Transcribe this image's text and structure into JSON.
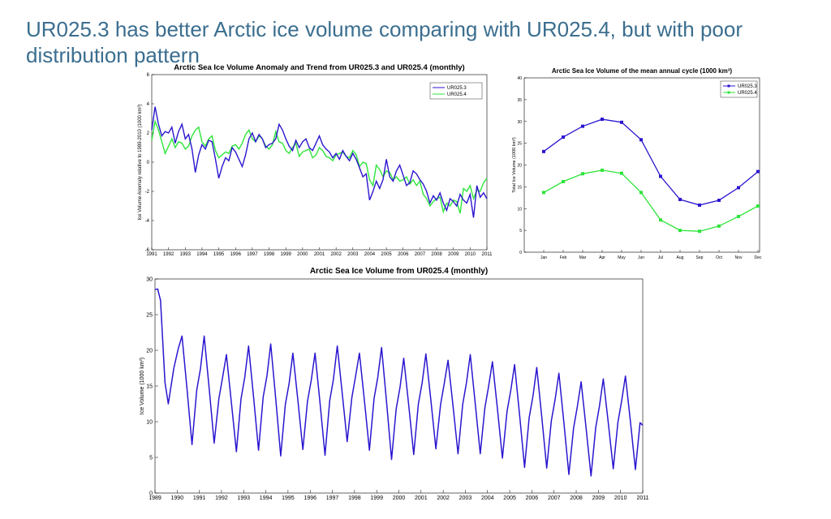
{
  "slide": {
    "title": "UR025.3 has better Arctic ice volume comparing with UR025.4, but with poor distribution pattern"
  },
  "colors": {
    "ur0253": "#2a16cf",
    "ur0254": "#2ee53a",
    "title": "#3b6e8f"
  },
  "chart_data": [
    {
      "type": "line",
      "title": "Arctic Sea Ice Volume Anomaly and Trend from UR025.3 and UR025.4 (monthly)",
      "ylabel": "Ice Volume Anomaly relative to 1989-2010 (1000 km³)",
      "xlim": [
        1991,
        2011
      ],
      "ylim": [
        -6,
        6
      ],
      "xticks": [
        "1991",
        "1992",
        "1993",
        "1994",
        "1995",
        "1996",
        "1997",
        "1998",
        "1999",
        "2000",
        "2001",
        "2002",
        "2003",
        "2004",
        "2005",
        "2006",
        "2007",
        "2008",
        "2009",
        "2010",
        "2011"
      ],
      "yticks": [
        "6",
        "4",
        "2",
        "0",
        "-2",
        "-4",
        "-6"
      ],
      "legend_position": "top-right",
      "series": [
        {
          "name": "UR025.3",
          "color": "#2a16cf",
          "x": [
            1991.0,
            1991.2,
            1991.4,
            1991.6,
            1991.8,
            1992.0,
            1992.2,
            1992.4,
            1992.6,
            1992.8,
            1993.0,
            1993.2,
            1993.4,
            1993.6,
            1993.8,
            1994.0,
            1994.2,
            1994.4,
            1994.6,
            1994.8,
            1995.0,
            1995.2,
            1995.4,
            1995.6,
            1995.8,
            1996.0,
            1996.2,
            1996.4,
            1996.6,
            1996.8,
            1997.0,
            1997.2,
            1997.4,
            1997.6,
            1997.8,
            1998.0,
            1998.2,
            1998.4,
            1998.6,
            1998.8,
            1999.0,
            1999.2,
            1999.4,
            1999.6,
            1999.8,
            2000.0,
            2000.2,
            2000.4,
            2000.6,
            2000.8,
            2001.0,
            2001.2,
            2001.4,
            2001.6,
            2001.8,
            2002.0,
            2002.2,
            2002.4,
            2002.6,
            2002.8,
            2003.0,
            2003.2,
            2003.4,
            2003.6,
            2003.8,
            2004.0,
            2004.2,
            2004.4,
            2004.6,
            2004.8,
            2005.0,
            2005.2,
            2005.4,
            2005.6,
            2005.8,
            2006.0,
            2006.2,
            2006.4,
            2006.6,
            2006.8,
            2007.0,
            2007.2,
            2007.4,
            2007.6,
            2007.8,
            2008.0,
            2008.2,
            2008.4,
            2008.6,
            2008.8,
            2009.0,
            2009.2,
            2009.4,
            2009.6,
            2009.8,
            2010.0,
            2010.2,
            2010.4,
            2010.6,
            2010.8,
            2011.0
          ],
          "y": [
            2.2,
            3.8,
            2.6,
            1.8,
            2.1,
            2.0,
            2.4,
            1.3,
            2.1,
            2.6,
            1.6,
            1.9,
            0.9,
            -0.7,
            0.5,
            1.2,
            0.9,
            1.5,
            1.4,
            0.2,
            -1.1,
            -0.3,
            0.3,
            0.1,
            1.0,
            0.7,
            0.2,
            -0.3,
            0.5,
            1.6,
            2.0,
            1.4,
            1.9,
            1.6,
            1.0,
            1.2,
            1.3,
            1.6,
            2.6,
            2.2,
            1.6,
            1.1,
            0.8,
            1.5,
            1.0,
            1.4,
            1.6,
            1.0,
            0.8,
            1.3,
            1.8,
            1.2,
            0.9,
            0.7,
            0.3,
            0.6,
            0.2,
            0.8,
            0.4,
            0.1,
            0.6,
            0.2,
            -0.4,
            -1.0,
            -0.8,
            -2.6,
            -2.0,
            -1.3,
            -1.8,
            -1.2,
            0.2,
            -1.0,
            -1.3,
            -0.6,
            -0.2,
            -0.9,
            -1.6,
            -1.4,
            -0.6,
            -0.8,
            -1.2,
            -1.5,
            -2.0,
            -2.8,
            -2.3,
            -2.6,
            -2.1,
            -2.8,
            -3.3,
            -2.5,
            -2.7,
            -3.0,
            -2.2,
            -2.6,
            -2.8,
            -2.2,
            -3.8,
            -1.6,
            -2.4,
            -2.1,
            -2.5
          ]
        },
        {
          "name": "UR025.4",
          "color": "#2ee53a",
          "x": [
            1991.0,
            1991.2,
            1991.4,
            1991.6,
            1991.8,
            1992.0,
            1992.2,
            1992.4,
            1992.6,
            1992.8,
            1993.0,
            1993.2,
            1993.4,
            1993.6,
            1993.8,
            1994.0,
            1994.2,
            1994.4,
            1994.6,
            1994.8,
            1995.0,
            1995.2,
            1995.4,
            1995.6,
            1995.8,
            1996.0,
            1996.2,
            1996.4,
            1996.6,
            1996.8,
            1997.0,
            1997.2,
            1997.4,
            1997.6,
            1997.8,
            1998.0,
            1998.2,
            1998.4,
            1998.6,
            1998.8,
            1999.0,
            1999.2,
            1999.4,
            1999.6,
            1999.8,
            2000.0,
            2000.2,
            2000.4,
            2000.6,
            2000.8,
            2001.0,
            2001.2,
            2001.4,
            2001.6,
            2001.8,
            2002.0,
            2002.2,
            2002.4,
            2002.6,
            2002.8,
            2003.0,
            2003.2,
            2003.4,
            2003.6,
            2003.8,
            2004.0,
            2004.2,
            2004.4,
            2004.6,
            2004.8,
            2005.0,
            2005.2,
            2005.4,
            2005.6,
            2005.8,
            2006.0,
            2006.2,
            2006.4,
            2006.6,
            2006.8,
            2007.0,
            2007.2,
            2007.4,
            2007.6,
            2007.8,
            2008.0,
            2008.2,
            2008.4,
            2008.6,
            2008.8,
            2009.0,
            2009.2,
            2009.4,
            2009.6,
            2009.8,
            2010.0,
            2010.2,
            2010.4,
            2010.6,
            2010.8,
            2011.0
          ],
          "y": [
            1.5,
            2.8,
            2.2,
            1.4,
            0.6,
            1.1,
            1.6,
            1.0,
            1.4,
            1.3,
            0.9,
            1.1,
            1.8,
            2.2,
            2.4,
            1.4,
            1.1,
            1.6,
            1.8,
            0.8,
            0.3,
            0.5,
            0.7,
            0.6,
            1.1,
            1.2,
            0.9,
            1.3,
            1.9,
            2.2,
            1.6,
            1.4,
            1.8,
            1.6,
            1.1,
            0.9,
            1.2,
            2.1,
            1.4,
            1.3,
            0.8,
            0.6,
            1.0,
            1.3,
            0.4,
            0.7,
            0.8,
            0.9,
            0.3,
            0.5,
            1.0,
            0.8,
            0.4,
            0.3,
            0.1,
            0.5,
            0.6,
            0.7,
            0.4,
            0.3,
            0.8,
            0.5,
            -0.3,
            0.0,
            -0.1,
            -1.2,
            -1.6,
            -0.2,
            -0.5,
            -1.0,
            -0.6,
            -0.7,
            -1.2,
            -1.0,
            -1.3,
            -1.2,
            -1.0,
            -1.5,
            -1.2,
            -1.6,
            -1.3,
            -2.2,
            -2.5,
            -3.0,
            -2.7,
            -2.5,
            -2.4,
            -3.4,
            -2.8,
            -3.0,
            -2.6,
            -2.7,
            -3.5,
            -1.8,
            -2.0,
            -1.6,
            -2.5,
            -1.9,
            -2.0,
            -1.4,
            -1.1
          ]
        }
      ]
    },
    {
      "type": "line",
      "title": "Arctic Sea Ice Volume of the mean annual cycle (1000 km³)",
      "ylabel": "Total Ice Volume (1000 km³)",
      "categories": [
        "Jan",
        "Feb",
        "Mar",
        "Apr",
        "May",
        "Jun",
        "Jul",
        "Aug",
        "Sep",
        "Oct",
        "Nov",
        "Dec"
      ],
      "ylim": [
        0,
        40
      ],
      "yticks": [
        "0",
        "5",
        "10",
        "15",
        "20",
        "25",
        "30",
        "35",
        "40"
      ],
      "legend_position": "top-right",
      "series": [
        {
          "name": "UR025.3",
          "color": "#2a16cf",
          "values": [
            23.1,
            26.4,
            28.9,
            30.5,
            29.8,
            25.8,
            17.4,
            12.1,
            10.8,
            11.9,
            14.8,
            18.5
          ]
        },
        {
          "name": "UR025.4",
          "color": "#2ee53a",
          "values": [
            13.7,
            16.2,
            18.0,
            18.8,
            18.1,
            13.7,
            7.4,
            5.0,
            4.8,
            6.0,
            8.2,
            10.6
          ]
        }
      ]
    },
    {
      "type": "line",
      "title": "Arctic Sea Ice Volume from UR025.4 (monthly)",
      "ylabel": "Ice Volume (1000 km³)",
      "xlim": [
        1989,
        2011
      ],
      "ylim": [
        0,
        30
      ],
      "xticks": [
        "1989",
        "1990",
        "1991",
        "1992",
        "1993",
        "1994",
        "1995",
        "1996",
        "1997",
        "1998",
        "1999",
        "2000",
        "2001",
        "2002",
        "2003",
        "2004",
        "2005",
        "2006",
        "2007",
        "2008",
        "2009",
        "2010",
        "2011"
      ],
      "yticks": [
        "0",
        "5",
        "10",
        "15",
        "20",
        "25",
        "30"
      ],
      "series": [
        {
          "name": "UR025.4",
          "color": "#2a16cf",
          "start_year": 1989,
          "annual_max": [
            28.6,
            22.0,
            22.0,
            19.4,
            20.6,
            20.9,
            19.6,
            19.6,
            20.6,
            19.6,
            20.4,
            18.9,
            19.5,
            18.6,
            19.4,
            18.4,
            18.0,
            17.6,
            16.8,
            15.6,
            16.0,
            16.4
          ],
          "annual_min": [
            12.5,
            6.8,
            7.0,
            5.8,
            6.0,
            5.2,
            6.1,
            5.3,
            7.2,
            6.0,
            4.7,
            5.4,
            6.2,
            5.5,
            5.5,
            4.9,
            3.6,
            3.5,
            2.6,
            2.4,
            3.4,
            3.3
          ],
          "final_value": 9.5
        }
      ]
    }
  ]
}
